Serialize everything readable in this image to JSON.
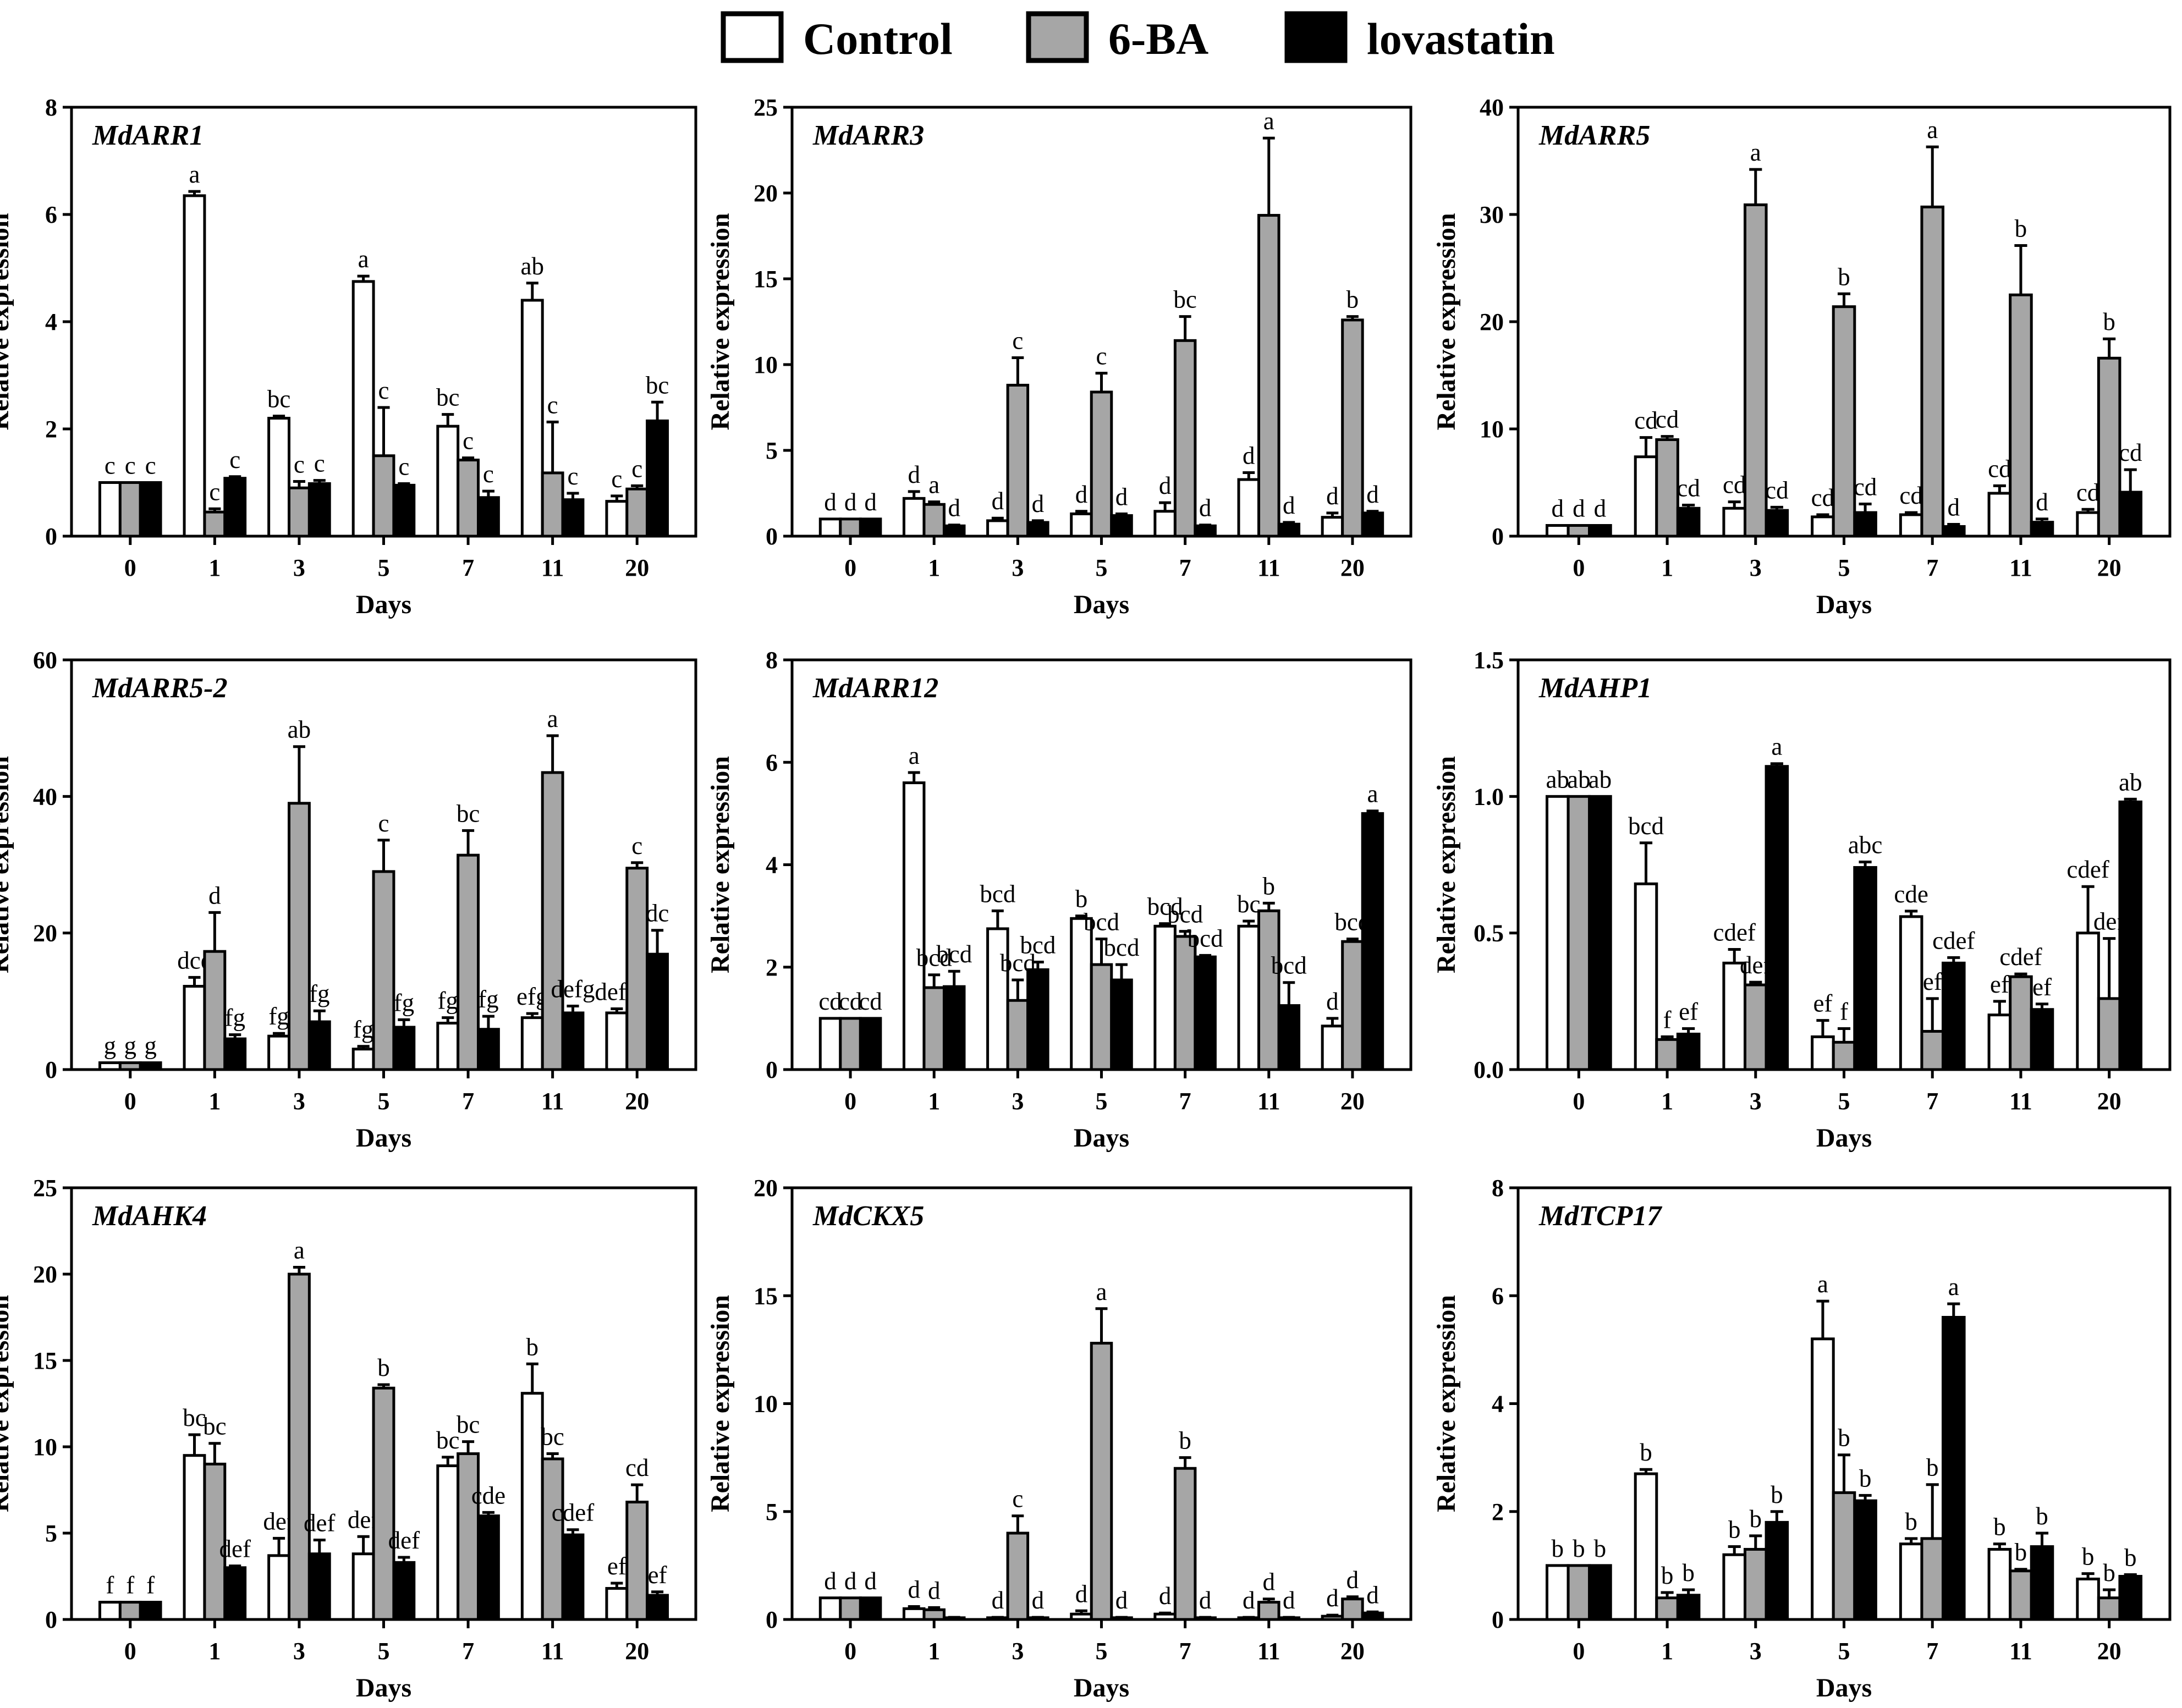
{
  "legend": [
    {
      "name": "Control",
      "color": "#ffffff"
    },
    {
      "name": "6-BA",
      "color": "#a6a6a6"
    },
    {
      "name": "lovastatin",
      "color": "#000000"
    }
  ],
  "chart_data": [
    {
      "type": "bar",
      "title": "MdARR1",
      "xlabel": "Days",
      "ylabel": "Relative expression",
      "categories": [
        "0",
        "1",
        "3",
        "5",
        "7",
        "11",
        "20"
      ],
      "ylim": [
        0,
        8
      ],
      "yticks": [
        "0",
        "2",
        "4",
        "6",
        "8"
      ],
      "series": [
        {
          "name": "Control",
          "values": [
            1,
            6.35,
            2.2,
            4.75,
            2.05,
            4.4,
            0.65
          ],
          "errors": [
            0,
            0.08,
            0.04,
            0.1,
            0.22,
            0.32,
            0.1
          ],
          "letters": [
            "c",
            "a",
            "bc",
            "a",
            "bc",
            "ab",
            "c"
          ]
        },
        {
          "name": "6-BA",
          "values": [
            1,
            0.45,
            0.9,
            1.5,
            1.42,
            1.18,
            0.88
          ],
          "errors": [
            0,
            0.06,
            0.12,
            0.9,
            0.04,
            0.95,
            0.06
          ],
          "letters": [
            "c",
            "c",
            "c",
            "c",
            "c",
            "c",
            "c"
          ]
        },
        {
          "name": "lovastatin",
          "values": [
            1,
            1.08,
            0.98,
            0.95,
            0.72,
            0.68,
            2.15
          ],
          "errors": [
            0,
            0.03,
            0.06,
            0.03,
            0.12,
            0.12,
            0.35
          ],
          "letters": [
            "c",
            "c",
            "c",
            "c",
            "c",
            "c",
            "bc"
          ]
        }
      ]
    },
    {
      "type": "bar",
      "title": "MdARR3",
      "xlabel": "Days",
      "ylabel": "Relative expression",
      "categories": [
        "0",
        "1",
        "3",
        "5",
        "7",
        "11",
        "20"
      ],
      "ylim": [
        0,
        25
      ],
      "yticks": [
        "0",
        "5",
        "10",
        "15",
        "20",
        "25"
      ],
      "series": [
        {
          "name": "Control",
          "values": [
            1,
            2.2,
            0.9,
            1.3,
            1.45,
            3.3,
            1.1
          ],
          "errors": [
            0,
            0.4,
            0.15,
            0.15,
            0.5,
            0.4,
            0.25
          ],
          "letters": [
            "d",
            "d",
            "d",
            "d",
            "d",
            "d",
            "d"
          ]
        },
        {
          "name": "6-BA",
          "values": [
            1,
            1.85,
            8.8,
            8.4,
            11.4,
            18.7,
            12.6
          ],
          "errors": [
            0,
            0.15,
            1.6,
            1.1,
            1.4,
            4.5,
            0.2
          ],
          "letters": [
            "d",
            "a",
            "c",
            "c",
            "bc",
            "a",
            "b"
          ]
        },
        {
          "name": "lovastatin",
          "values": [
            1,
            0.6,
            0.8,
            1.2,
            0.6,
            0.7,
            1.35
          ],
          "errors": [
            0,
            0.05,
            0.1,
            0.1,
            0.05,
            0.1,
            0.1
          ],
          "letters": [
            "d",
            "d",
            "d",
            "d",
            "d",
            "d",
            "d"
          ]
        }
      ]
    },
    {
      "type": "bar",
      "title": "MdARR5",
      "xlabel": "Days",
      "ylabel": "Relative expression",
      "categories": [
        "0",
        "1",
        "3",
        "5",
        "7",
        "11",
        "20"
      ],
      "ylim": [
        0,
        40
      ],
      "yticks": [
        "0",
        "10",
        "20",
        "30",
        "40"
      ],
      "series": [
        {
          "name": "Control",
          "values": [
            1,
            7.4,
            2.6,
            1.8,
            2.0,
            4.0,
            2.2
          ],
          "errors": [
            0,
            1.8,
            0.6,
            0.2,
            0.2,
            0.7,
            0.3
          ],
          "letters": [
            "d",
            "cd",
            "cd",
            "cd",
            "cd",
            "cd",
            "cd"
          ]
        },
        {
          "name": "6-BA",
          "values": [
            1,
            9.0,
            30.9,
            21.4,
            30.7,
            22.5,
            16.6
          ],
          "errors": [
            0,
            0.3,
            3.3,
            1.2,
            5.6,
            4.6,
            1.8
          ],
          "letters": [
            "d",
            "cd",
            "a",
            "b",
            "a",
            "b",
            "b"
          ]
        },
        {
          "name": "lovastatin",
          "values": [
            1,
            2.6,
            2.4,
            2.2,
            0.9,
            1.3,
            4.1
          ],
          "errors": [
            0,
            0.3,
            0.3,
            0.8,
            0.2,
            0.3,
            2.1
          ],
          "letters": [
            "d",
            "cd",
            "cd",
            "cd",
            "d",
            "d",
            "cd"
          ]
        }
      ]
    },
    {
      "type": "bar",
      "title": "MdARR5-2",
      "xlabel": "Days",
      "ylabel": "Relative expression",
      "categories": [
        "0",
        "1",
        "3",
        "5",
        "7",
        "11",
        "20"
      ],
      "ylim": [
        0,
        60
      ],
      "yticks": [
        "0",
        "20",
        "40",
        "60"
      ],
      "series": [
        {
          "name": "Control",
          "values": [
            1,
            12.2,
            4.9,
            3.0,
            6.8,
            7.6,
            8.3
          ],
          "errors": [
            0,
            1.3,
            0.4,
            0.4,
            0.8,
            0.6,
            0.6
          ],
          "letters": [
            "g",
            "dce",
            "fg",
            "fg",
            "fg",
            "efg",
            "defg"
          ]
        },
        {
          "name": "6-BA",
          "values": [
            1,
            17.3,
            39.0,
            29.0,
            31.4,
            43.5,
            29.5
          ],
          "errors": [
            0,
            5.7,
            8.3,
            4.6,
            3.6,
            5.4,
            0.8
          ],
          "letters": [
            "g",
            "d",
            "ab",
            "c",
            "bc",
            "a",
            "c"
          ]
        },
        {
          "name": "lovastatin",
          "values": [
            1,
            4.5,
            7.0,
            6.2,
            5.9,
            8.3,
            16.9
          ],
          "errors": [
            0,
            0.6,
            1.6,
            1.1,
            1.9,
            1.0,
            3.5
          ],
          "letters": [
            "g",
            "fg",
            "fg",
            "fg",
            "fg",
            "defg",
            "dc"
          ]
        }
      ]
    },
    {
      "type": "bar",
      "title": "MdARR12",
      "xlabel": "Days",
      "ylabel": "Relative expression",
      "categories": [
        "0",
        "1",
        "3",
        "5",
        "7",
        "11",
        "20"
      ],
      "ylim": [
        0,
        8
      ],
      "yticks": [
        "0",
        "2",
        "4",
        "6",
        "8"
      ],
      "series": [
        {
          "name": "Control",
          "values": [
            1,
            5.6,
            2.75,
            2.95,
            2.8,
            2.8,
            0.85
          ],
          "errors": [
            0,
            0.2,
            0.35,
            0.05,
            0.05,
            0.1,
            0.15
          ],
          "letters": [
            "cd",
            "a",
            "bcd",
            "b",
            "bcd",
            "bc",
            "d"
          ]
        },
        {
          "name": "6-BA",
          "values": [
            1,
            1.6,
            1.35,
            2.05,
            2.6,
            3.1,
            2.5
          ],
          "errors": [
            0,
            0.25,
            0.4,
            0.5,
            0.1,
            0.15,
            0.05
          ],
          "letters": [
            "cd",
            "bcd",
            "bcd",
            "bcd",
            "bcd",
            "b",
            "bcd"
          ]
        },
        {
          "name": "lovastatin",
          "values": [
            1,
            1.62,
            1.95,
            1.75,
            2.2,
            1.25,
            5.0
          ],
          "errors": [
            0,
            0.3,
            0.15,
            0.3,
            0.03,
            0.45,
            0.05
          ],
          "letters": [
            "cd",
            "bcd",
            "bcd",
            "bcd",
            "bcd",
            "bcd",
            "a"
          ]
        }
      ]
    },
    {
      "type": "bar",
      "title": "MdAHP1",
      "xlabel": "Days",
      "ylabel": "Relative expression",
      "categories": [
        "0",
        "1",
        "3",
        "5",
        "7",
        "11",
        "20"
      ],
      "ylim": [
        0,
        1.5
      ],
      "yticks": [
        "0.0",
        "0.5",
        "1.0",
        "1.5"
      ],
      "series": [
        {
          "name": "Control",
          "values": [
            1.0,
            0.68,
            0.39,
            0.12,
            0.56,
            0.2,
            0.5
          ],
          "errors": [
            0,
            0.15,
            0.05,
            0.06,
            0.02,
            0.05,
            0.17
          ],
          "letters": [
            "ab",
            "bcd",
            "cdef",
            "ef",
            "cde",
            "ef",
            "cdef"
          ]
        },
        {
          "name": "6-BA",
          "values": [
            1.0,
            0.11,
            0.31,
            0.1,
            0.14,
            0.34,
            0.26
          ],
          "errors": [
            0,
            0.01,
            0.01,
            0.05,
            0.12,
            0.01,
            0.22
          ],
          "letters": [
            "ab",
            "f",
            "def",
            "f",
            "ef",
            "cdef",
            "def"
          ]
        },
        {
          "name": "lovastatin",
          "values": [
            1.0,
            0.13,
            1.11,
            0.74,
            0.39,
            0.22,
            0.98
          ],
          "errors": [
            0,
            0.02,
            0.01,
            0.02,
            0.02,
            0.02,
            0.01
          ],
          "letters": [
            "ab",
            "ef",
            "a",
            "abc",
            "cdef",
            "ef",
            "ab"
          ]
        }
      ]
    },
    {
      "type": "bar",
      "title": "MdAHK4",
      "xlabel": "Days",
      "ylabel": "Relative expression",
      "categories": [
        "0",
        "1",
        "3",
        "5",
        "7",
        "11",
        "20"
      ],
      "ylim": [
        0,
        25
      ],
      "yticks": [
        "0",
        "5",
        "10",
        "15",
        "20",
        "25"
      ],
      "series": [
        {
          "name": "Control",
          "values": [
            1,
            9.5,
            3.7,
            3.8,
            8.9,
            13.1,
            1.8
          ],
          "errors": [
            0,
            1.2,
            1.0,
            1.0,
            0.5,
            1.7,
            0.3
          ],
          "letters": [
            "f",
            "bc",
            "def",
            "def",
            "bc",
            "b",
            "ef"
          ]
        },
        {
          "name": "6-BA",
          "values": [
            1,
            9.0,
            20.0,
            13.4,
            9.6,
            9.3,
            6.8
          ],
          "errors": [
            0,
            1.2,
            0.4,
            0.2,
            0.7,
            0.3,
            1.0
          ],
          "letters": [
            "f",
            "bc",
            "a",
            "b",
            "bc",
            "bc",
            "cd"
          ]
        },
        {
          "name": "lovastatin",
          "values": [
            1,
            3.0,
            3.8,
            3.3,
            6.0,
            4.9,
            1.4
          ],
          "errors": [
            0,
            0.1,
            0.8,
            0.3,
            0.2,
            0.3,
            0.2
          ],
          "letters": [
            "f",
            "def",
            "def",
            "def",
            "cde",
            "cdef",
            "ef"
          ]
        }
      ]
    },
    {
      "type": "bar",
      "title": "MdCKX5",
      "xlabel": "Days",
      "ylabel": "Relative expression",
      "categories": [
        "0",
        "1",
        "3",
        "5",
        "7",
        "11",
        "20"
      ],
      "ylim": [
        0,
        20
      ],
      "yticks": [
        "0",
        "5",
        "10",
        "15",
        "20"
      ],
      "series": [
        {
          "name": "Control",
          "values": [
            1,
            0.5,
            0.08,
            0.25,
            0.25,
            0.08,
            0.15
          ],
          "errors": [
            0,
            0.1,
            0.02,
            0.15,
            0.05,
            0.02,
            0.05
          ],
          "letters": [
            "d",
            "d",
            "d",
            "d",
            "d",
            "d",
            "d"
          ]
        },
        {
          "name": "6-BA",
          "values": [
            1,
            0.45,
            4.0,
            12.8,
            7.0,
            0.8,
            0.95
          ],
          "errors": [
            0,
            0.1,
            0.8,
            1.6,
            0.5,
            0.15,
            0.1
          ],
          "letters": [
            "d",
            "d",
            "c",
            "a",
            "b",
            "d",
            "d"
          ]
        },
        {
          "name": "lovastatin",
          "values": [
            1,
            0.08,
            0.08,
            0.08,
            0.08,
            0.08,
            0.3
          ],
          "errors": [
            0,
            0.02,
            0.02,
            0.02,
            0.02,
            0.02,
            0.05
          ],
          "letters": [
            "d",
            "",
            "d",
            "d",
            "d",
            "d",
            "d"
          ]
        }
      ]
    },
    {
      "type": "bar",
      "title": "MdTCP17",
      "xlabel": "Days",
      "ylabel": "Relative expression",
      "categories": [
        "0",
        "1",
        "3",
        "5",
        "7",
        "11",
        "20"
      ],
      "ylim": [
        0,
        8
      ],
      "yticks": [
        "0",
        "2",
        "4",
        "6",
        "8"
      ],
      "series": [
        {
          "name": "Control",
          "values": [
            1,
            2.7,
            1.2,
            5.2,
            1.4,
            1.3,
            0.75
          ],
          "errors": [
            0,
            0.08,
            0.15,
            0.7,
            0.1,
            0.1,
            0.1
          ],
          "letters": [
            "b",
            "b",
            "b",
            "a",
            "b",
            "b",
            "b"
          ]
        },
        {
          "name": "6-BA",
          "values": [
            1,
            0.4,
            1.3,
            2.35,
            1.5,
            0.9,
            0.4
          ],
          "errors": [
            0,
            0.1,
            0.25,
            0.7,
            1.0,
            0.03,
            0.15
          ],
          "letters": [
            "b",
            "b",
            "b",
            "b",
            "b",
            "b",
            "b"
          ]
        },
        {
          "name": "lovastatin",
          "values": [
            1,
            0.45,
            1.8,
            2.2,
            5.6,
            1.35,
            0.8
          ],
          "errors": [
            0,
            0.1,
            0.2,
            0.1,
            0.25,
            0.25,
            0.03
          ],
          "letters": [
            "b",
            "b",
            "b",
            "b",
            "a",
            "b",
            "b"
          ]
        }
      ]
    }
  ]
}
